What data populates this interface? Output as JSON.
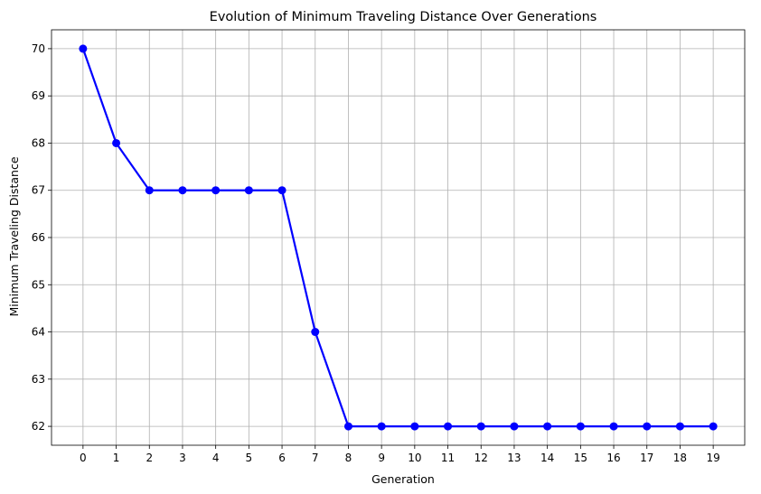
{
  "chart_data": {
    "type": "line",
    "title": "Evolution of Minimum Traveling Distance Over Generations",
    "xlabel": "Generation",
    "ylabel": "Minimum Traveling Distance",
    "x": [
      0,
      1,
      2,
      3,
      4,
      5,
      6,
      7,
      8,
      9,
      10,
      11,
      12,
      13,
      14,
      15,
      16,
      17,
      18,
      19
    ],
    "y": [
      70,
      68,
      67,
      67,
      67,
      67,
      67,
      64,
      62,
      62,
      62,
      62,
      62,
      62,
      62,
      62,
      62,
      62,
      62,
      62
    ],
    "xlim": [
      -0.95,
      19.95
    ],
    "ylim": [
      61.6,
      70.4
    ],
    "xticks": [
      0,
      1,
      2,
      3,
      4,
      5,
      6,
      7,
      8,
      9,
      10,
      11,
      12,
      13,
      14,
      15,
      16,
      17,
      18,
      19
    ],
    "yticks": [
      62,
      63,
      64,
      65,
      66,
      67,
      68,
      69,
      70
    ],
    "grid": true,
    "line_color": "#0000ff",
    "marker": "circle"
  }
}
